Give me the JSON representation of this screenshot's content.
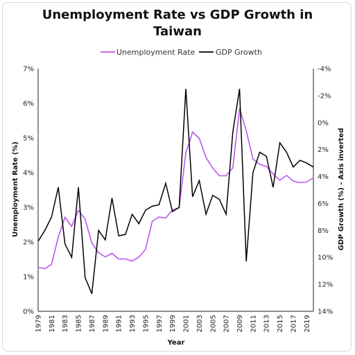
{
  "chart_data": {
    "type": "line",
    "title_lines": [
      "Unemployment Rate vs GDP Growth in",
      "Taiwan"
    ],
    "xlabel": "Year",
    "ylabel_left": "Unemployment Rate (%)",
    "ylabel_right": "GDP Growth (%) - Axis inverted",
    "xlim": [
      1979,
      2020
    ],
    "ylim_left": [
      0,
      7
    ],
    "ylim_right": [
      -4,
      14
    ],
    "right_axis_inverted": true,
    "left_ticks": [
      "0%",
      "1%",
      "2%",
      "3%",
      "4%",
      "5%",
      "6%",
      "7%"
    ],
    "right_ticks": [
      "-4%",
      "-2%",
      "0%",
      "2%",
      "4%",
      "6%",
      "8%",
      "10%",
      "12%",
      "14%"
    ],
    "x_ticks": [
      "1979",
      "1981",
      "1983",
      "1985",
      "1987",
      "1989",
      "1991",
      "1993",
      "1995",
      "1997",
      "1999",
      "2001",
      "2003",
      "2005",
      "2007",
      "2009",
      "2011",
      "2013",
      "2015",
      "2017",
      "2019"
    ],
    "grid": false,
    "legend_position": "top",
    "x": [
      1979,
      1980,
      1981,
      1982,
      1983,
      1984,
      1985,
      1986,
      1987,
      1988,
      1989,
      1990,
      1991,
      1992,
      1993,
      1994,
      1995,
      1996,
      1997,
      1998,
      1999,
      2000,
      2001,
      2002,
      2003,
      2004,
      2005,
      2006,
      2007,
      2008,
      2009,
      2010,
      2011,
      2012,
      2013,
      2014,
      2015,
      2016,
      2017,
      2018,
      2019,
      2020
    ],
    "series": [
      {
        "name": "Unemployment Rate",
        "axis": "left",
        "color": "#bb55ee",
        "values": [
          1.27,
          1.23,
          1.36,
          2.14,
          2.71,
          2.45,
          2.91,
          2.66,
          1.97,
          1.69,
          1.57,
          1.67,
          1.51,
          1.51,
          1.45,
          1.56,
          1.79,
          2.6,
          2.72,
          2.69,
          2.92,
          2.99,
          4.57,
          5.17,
          4.99,
          4.44,
          4.13,
          3.91,
          3.91,
          4.14,
          5.85,
          5.21,
          4.39,
          4.24,
          4.18,
          3.96,
          3.78,
          3.92,
          3.76,
          3.71,
          3.73,
          3.85
        ]
      },
      {
        "name": "GDP Growth",
        "axis": "right",
        "color": "#000000",
        "values": [
          8.8,
          8.0,
          7.0,
          4.8,
          9.0,
          10.0,
          4.8,
          11.5,
          12.7,
          8.0,
          8.7,
          5.6,
          8.4,
          8.3,
          6.8,
          7.5,
          6.5,
          6.2,
          6.1,
          4.5,
          6.6,
          6.3,
          -2.5,
          5.5,
          4.3,
          6.8,
          5.4,
          5.7,
          6.8,
          0.7,
          -2.5,
          10.3,
          3.7,
          2.2,
          2.5,
          4.8,
          1.5,
          2.2,
          3.3,
          2.8,
          3.0,
          3.3
        ]
      }
    ]
  }
}
